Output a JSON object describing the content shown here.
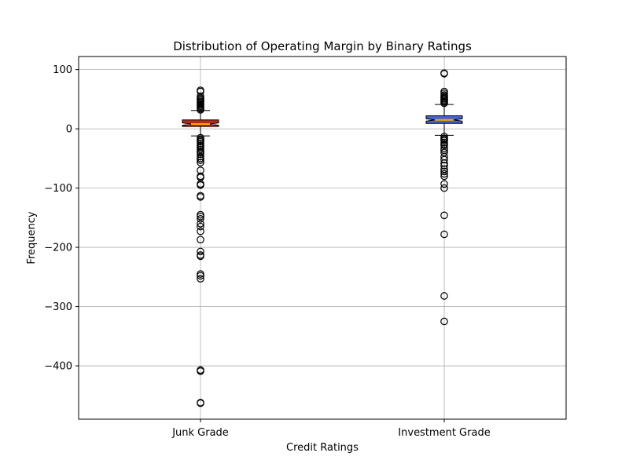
{
  "chart_data": {
    "type": "boxplot",
    "title": "Distribution of Operating Margin by Binary Ratings",
    "xlabel": "Credit Ratings",
    "ylabel": "Frequency",
    "categories": [
      "Junk Grade",
      "Investment Grade"
    ],
    "ylim": [
      -490,
      122
    ],
    "yticks": [
      100,
      0,
      -100,
      -200,
      -300,
      -400
    ],
    "ytick_labels": [
      "100",
      "0",
      "−100",
      "−200",
      "−300",
      "−400"
    ],
    "grid": true,
    "notched": true,
    "boxes": [
      {
        "category": "Junk Grade",
        "fill": "#b22c1c",
        "median_color": "#ffa500",
        "q1": 4,
        "median": 8,
        "q3": 15,
        "whisker_low": -12,
        "whisker_high": 31,
        "notch_low": 6,
        "notch_high": 10,
        "outliers": [
          65,
          63,
          55,
          52,
          50,
          48,
          46,
          44,
          42,
          40,
          38,
          36,
          34,
          32,
          -15,
          -18,
          -20,
          -22,
          -25,
          -28,
          -30,
          -32,
          -35,
          -38,
          -40,
          -43,
          -47,
          -50,
          -53,
          -57,
          -70,
          -80,
          -82,
          -93,
          -95,
          -113,
          -115,
          -145,
          -148,
          -152,
          -160,
          -165,
          -173,
          -187,
          -207,
          -213,
          -215,
          -245,
          -248,
          -253,
          -407,
          -409,
          -462,
          -463
        ]
      },
      {
        "category": "Investment Grade",
        "fill": "#4566c9",
        "median_color": "#ffa500",
        "q1": 9,
        "median": 15,
        "q3": 22,
        "whisker_low": -11,
        "whisker_high": 41,
        "notch_low": 13,
        "notch_high": 17,
        "outliers": [
          94,
          93,
          63,
          60,
          57,
          55,
          53,
          51,
          49,
          47,
          45,
          43,
          -13,
          -16,
          -18,
          -20,
          -23,
          -26,
          -28,
          -33,
          -36,
          -40,
          -47,
          -52,
          -58,
          -62,
          -68,
          -72,
          -76,
          -80,
          -93,
          -100,
          -146,
          -178,
          -282,
          -325
        ]
      }
    ]
  }
}
